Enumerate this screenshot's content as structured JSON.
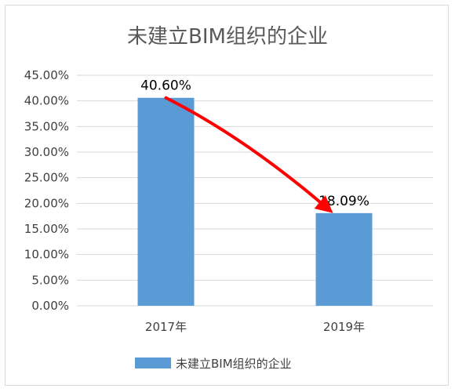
{
  "chart_data": {
    "type": "bar",
    "title": "未建立BIM组织的企业",
    "categories": [
      "2017年",
      "2019年"
    ],
    "series": [
      {
        "name": "未建立BIM组织的企业",
        "values": [
          40.6,
          18.09
        ]
      }
    ],
    "data_labels": [
      "40.60%",
      "18.09%"
    ],
    "y_ticks": [
      "0.00%",
      "5.00%",
      "10.00%",
      "15.00%",
      "20.00%",
      "25.00%",
      "30.00%",
      "35.00%",
      "40.00%",
      "45.00%"
    ],
    "ylim": [
      0,
      45
    ],
    "y_unit": "%",
    "grid": true,
    "legend_position": "bottom",
    "annotation": "red curved arrow from the 2017年 bar to the 2019年 bar",
    "colors": {
      "bar": "#5b9bd5",
      "arrow": "#ff0000",
      "grid": "#d9d9d9",
      "text": "#404040",
      "title": "#595959"
    }
  }
}
